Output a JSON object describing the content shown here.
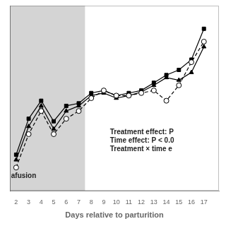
{
  "chart_data": {
    "type": "line",
    "xlabel": "Days relative to parturition",
    "x": [
      2,
      3,
      4,
      5,
      6,
      7,
      8,
      9,
      10,
      11,
      12,
      13,
      14,
      15,
      16,
      17
    ],
    "series": [
      {
        "color": "#000000",
        "marker": "circle_open",
        "line_style": "dashed",
        "values": [
          12.5,
          19.0,
          23.5,
          19.0,
          22.0,
          23.5,
          26.0,
          27.5,
          26.5,
          26.5,
          27.0,
          27.5,
          25.5,
          28.5,
          33.0,
          37.0
        ]
      },
      {
        "color": "#000000",
        "marker": "triangle",
        "line_style": "solid",
        "values": [
          14.0,
          20.5,
          24.5,
          20.0,
          23.5,
          24.5,
          26.5,
          27.0,
          26.0,
          26.5,
          27.2,
          28.5,
          30.0,
          29.5,
          31.0,
          36.0
        ]
      },
      {
        "color": "#000000",
        "marker": "square",
        "line_style": "solid",
        "values": [
          15.0,
          22.0,
          25.5,
          21.5,
          24.5,
          25.0,
          27.0,
          27.5,
          26.5,
          27.0,
          27.5,
          29.0,
          30.5,
          31.5,
          33.5,
          39.5
        ]
      }
    ],
    "shaded_region": [
      1.5,
      7.5
    ],
    "xlim": [
      1.5,
      18.2
    ],
    "xticks": [
      2,
      3,
      4,
      5,
      6,
      7,
      8,
      9,
      10,
      11,
      12,
      13,
      14,
      15,
      16,
      17
    ],
    "ylim": [
      8,
      44
    ],
    "yticks": [],
    "tick_labels": "x",
    "grid": false,
    "annotations": [
      {
        "text": "Treatment effect: P\nTime effect: P < 0.0\nTreatment × time e",
        "x": 9.5,
        "y": 20.0
      },
      {
        "text": "afusion",
        "x": 1.6,
        "y": 11.5
      }
    ]
  }
}
